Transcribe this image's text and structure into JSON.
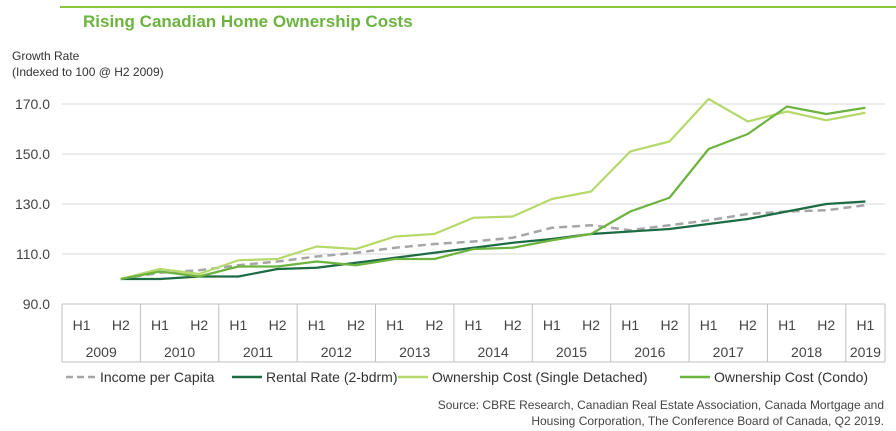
{
  "chart_data": {
    "type": "line",
    "title": "Rising Canadian Home Ownership Costs",
    "ylabel": "Growth Rate",
    "ylabel_sub": "(Indexed to 100 @ H2 2009)",
    "ylim": [
      90,
      175
    ],
    "yticks": [
      "170.0",
      "150.0",
      "130.0",
      "110.0",
      "90.0"
    ],
    "ytick_values": [
      170,
      150,
      130,
      110,
      90
    ],
    "x_halves": [
      "H1",
      "H2",
      "H1",
      "H2",
      "H1",
      "H2",
      "H1",
      "H2",
      "H1",
      "H2",
      "H1",
      "H2",
      "H1",
      "H2",
      "H1",
      "H2",
      "H1",
      "H2",
      "H1",
      "H2",
      "H1"
    ],
    "years": [
      "2009",
      "2010",
      "2011",
      "2012",
      "2013",
      "2014",
      "2015",
      "2016",
      "2017",
      "2018",
      "2019"
    ],
    "x": [
      "H2 2009",
      "H1 2010",
      "H2 2010",
      "H1 2011",
      "H2 2011",
      "H1 2012",
      "H2 2012",
      "H1 2013",
      "H2 2013",
      "H1 2014",
      "H2 2014",
      "H1 2015",
      "H2 2015",
      "H1 2016",
      "H2 2016",
      "H1 2017",
      "H2 2017",
      "H1 2018",
      "H2 2018",
      "H1 2019"
    ],
    "grid": true,
    "legend_position": "bottom",
    "series": [
      {
        "name": "Income per Capita",
        "color": "#a6a6a6",
        "dash": true,
        "values": [
          100.0,
          102.5,
          103.5,
          105.5,
          107.0,
          109.0,
          110.5,
          112.5,
          114.0,
          115.0,
          116.5,
          120.5,
          121.5,
          119.5,
          121.5,
          123.5,
          126.0,
          127.0,
          127.5,
          129.5
        ]
      },
      {
        "name": "Rental Rate (2-bdrm)",
        "color": "#1d6b45",
        "dash": false,
        "values": [
          100.0,
          100.0,
          101.0,
          101.0,
          104.0,
          104.5,
          106.5,
          108.5,
          110.5,
          112.5,
          114.5,
          116.0,
          118.0,
          119.0,
          120.0,
          122.0,
          124.0,
          127.0,
          130.0,
          131.0
        ]
      },
      {
        "name": "Ownership Cost (Single Detached)",
        "color": "#b5d96a",
        "dash": false,
        "values": [
          100.0,
          104.0,
          102.0,
          107.5,
          108.0,
          113.0,
          112.0,
          117.0,
          118.0,
          124.5,
          125.0,
          132.0,
          135.0,
          151.0,
          155.0,
          172.0,
          163.0,
          167.0,
          163.5,
          166.5
        ]
      },
      {
        "name": "Ownership Cost (Condo)",
        "color": "#6db33f",
        "dash": false,
        "values": [
          100.0,
          103.0,
          101.0,
          105.0,
          105.0,
          107.0,
          105.5,
          108.0,
          108.0,
          112.0,
          112.5,
          115.5,
          118.0,
          127.0,
          132.5,
          152.0,
          158.0,
          169.0,
          166.0,
          168.5
        ]
      }
    ]
  },
  "source": {
    "line1": "Source: CBRE Research, Canadian Real Estate Association, Canada Mortgage and",
    "line2": "Housing Corporation, The Conference Board of Canada, Q2 2019."
  }
}
